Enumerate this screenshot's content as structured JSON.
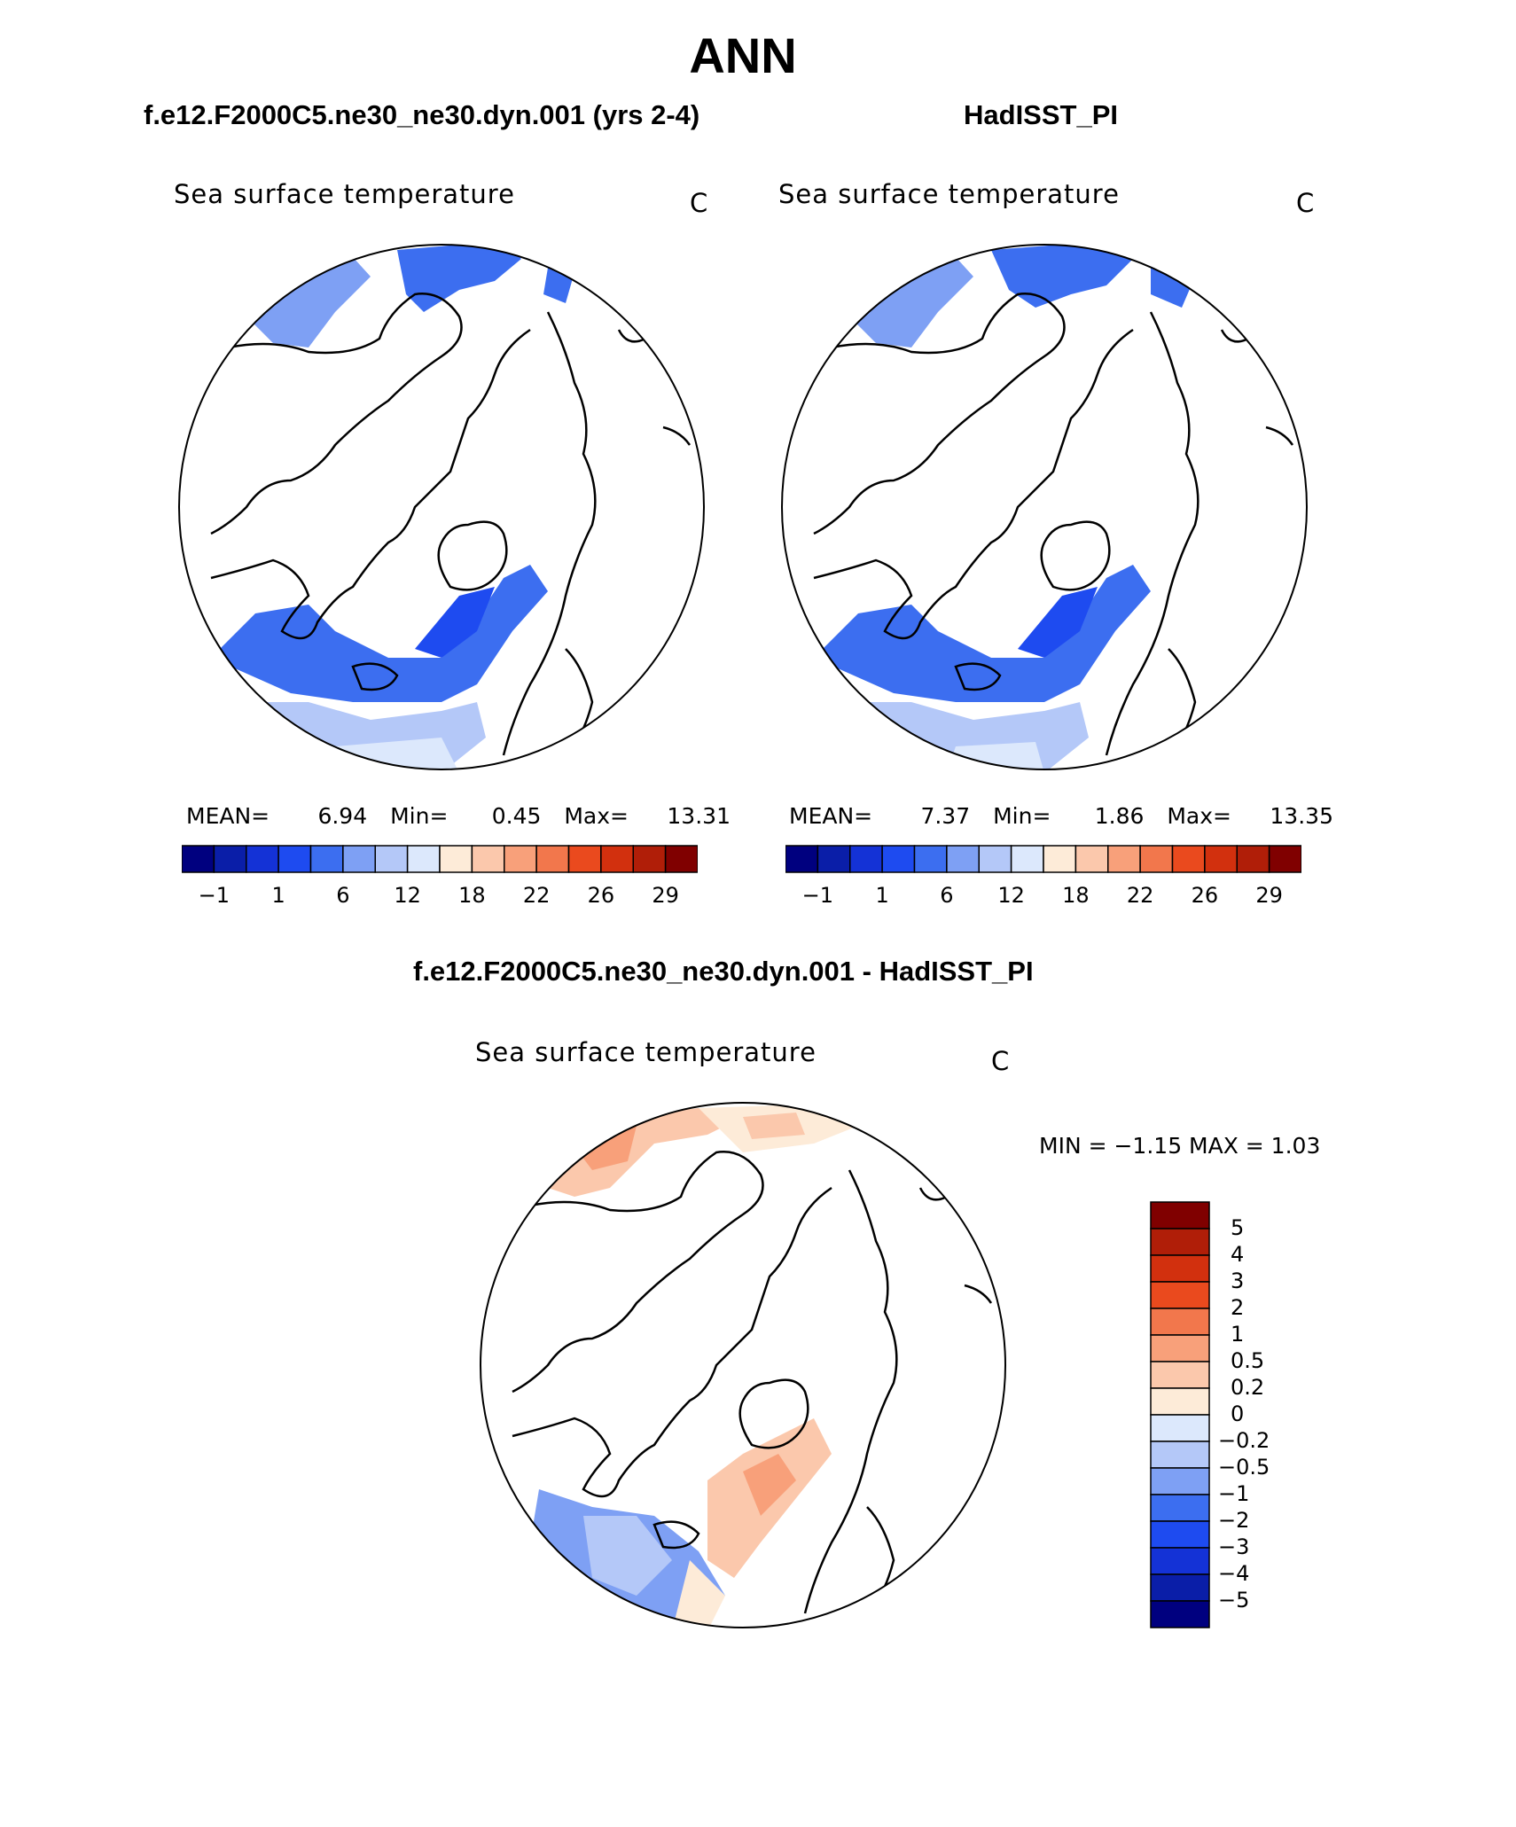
{
  "page_title": "ANN",
  "panels": [
    {
      "case_title": "f.e12.F2000C5.ne30_ne30.dyn.001 (yrs 2-4)",
      "variable": "Sea surface temperature",
      "units": "C",
      "stats": {
        "mean_label": "MEAN=",
        "mean": "6.94",
        "min_label": "Min=",
        "min": "0.45",
        "max_label": "Max=",
        "max": "13.31"
      }
    },
    {
      "case_title": "HadISST_PI",
      "variable": "Sea surface temperature",
      "units": "C",
      "stats": {
        "mean_label": "MEAN=",
        "mean": "7.37",
        "min_label": "Min=",
        "min": "1.86",
        "max_label": "Max=",
        "max": "13.35"
      }
    }
  ],
  "diff_panel": {
    "case_title": "f.e12.F2000C5.ne30_ne30.dyn.001 - HadISST_PI",
    "variable": "Sea surface temperature",
    "units": "C",
    "minmax": "MIN =  −1.15 MAX =     1.03"
  },
  "abs_colorbar": {
    "colors": [
      "#00007f",
      "#0a1ea8",
      "#1432d6",
      "#1e4bf0",
      "#3c6ef0",
      "#7ea0f4",
      "#b4c8f8",
      "#dce8fc",
      "#fdebd8",
      "#fbc8ac",
      "#f8a07a",
      "#f2774c",
      "#ea4a1e",
      "#d2300e",
      "#b01e08",
      "#800000"
    ],
    "ticks": [
      "−1",
      "1",
      "6",
      "12",
      "18",
      "22",
      "26",
      "29"
    ]
  },
  "diff_colorbar": {
    "colors": [
      "#00007f",
      "#0a1ea8",
      "#1432d6",
      "#1e4bf0",
      "#3c6ef0",
      "#7ea0f4",
      "#b4c8f8",
      "#dce8fc",
      "#fdebd8",
      "#fbc8ac",
      "#f8a07a",
      "#f2774c",
      "#ea4a1e",
      "#d2300e",
      "#b01e08",
      "#800000"
    ],
    "ticks": [
      "−5",
      "−4",
      "−3",
      "−2",
      "−1",
      "−0.5",
      "−0.2",
      "0",
      "0.2",
      "0.5",
      "1",
      "2",
      "3",
      "4",
      "5"
    ]
  }
}
